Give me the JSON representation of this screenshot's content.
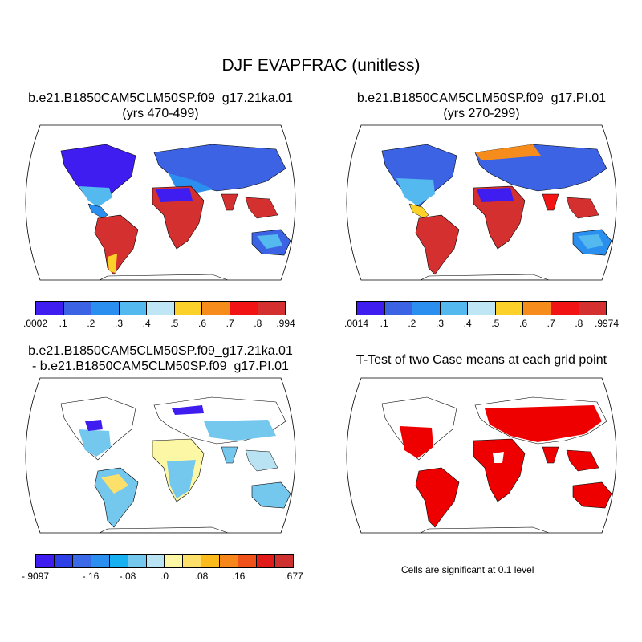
{
  "figure": {
    "title": "DJF EVAPFRAC (unitless)",
    "panels": [
      {
        "id": "case-21ka",
        "title_line1": "b.e21.B1850CAM5CLM50SP.f09_g17.21ka.01",
        "title_line2": "(yrs 470-499)",
        "colorbar": {
          "colors": [
            "#3f1df0",
            "#3c63e4",
            "#2b8ff0",
            "#53b9ef",
            "#bfe6f5",
            "#fcd12a",
            "#f58c1c",
            "#f21414",
            "#d43030"
          ],
          "labels": [
            ".0002",
            ".1",
            ".2",
            ".3",
            ".4",
            ".5",
            ".6",
            ".7",
            ".8",
            ".994"
          ]
        }
      },
      {
        "id": "case-pi",
        "title_line1": "b.e21.B1850CAM5CLM50SP.f09_g17.PI.01",
        "title_line2": "(yrs 270-299)",
        "colorbar": {
          "colors": [
            "#3f1df0",
            "#3c63e4",
            "#2b8ff0",
            "#53b9ef",
            "#bfe6f5",
            "#fcd12a",
            "#f58c1c",
            "#f21414",
            "#d43030"
          ],
          "labels": [
            ".0014",
            ".1",
            ".2",
            ".3",
            ".4",
            ".5",
            ".6",
            ".7",
            ".8",
            ".9974"
          ]
        }
      },
      {
        "id": "difference",
        "title_line1": "b.e21.B1850CAM5CLM50SP.f09_g17.21ka.01",
        "title_line2": "- b.e21.B1850CAM5CLM50SP.f09_g17.PI.01",
        "colorbar": {
          "colors": [
            "#3f1df0",
            "#2d3fe6",
            "#3a6ae8",
            "#2b8ff0",
            "#17b1f2",
            "#74c8ee",
            "#b9e2f2",
            "#fbf7a4",
            "#fde06a",
            "#fbbb1d",
            "#f7861b",
            "#f0521a",
            "#e11a1a",
            "#cf3030"
          ],
          "labels": [
            "-.9097",
            "-.16",
            "-.08",
            ".0",
            ".08",
            ".16",
            ".677"
          ]
        }
      },
      {
        "id": "ttest",
        "title_line1": "T-Test of two Case means at each grid point",
        "note": "Cells are significant at 0.1 level",
        "significance_color": "#ee0000"
      }
    ]
  }
}
